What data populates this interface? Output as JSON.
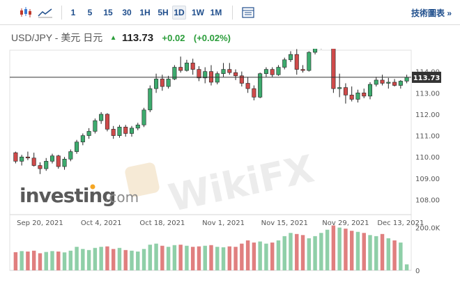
{
  "toolbar": {
    "icons": [
      "candlestick-icon",
      "line-chart-icon",
      "table-icon"
    ],
    "intervals": [
      {
        "label": "1",
        "active": false
      },
      {
        "label": "5",
        "active": false
      },
      {
        "label": "15",
        "active": false
      },
      {
        "label": "30",
        "active": false
      },
      {
        "label": "1H",
        "active": false
      },
      {
        "label": "5H",
        "active": false
      },
      {
        "label": "1D",
        "active": true
      },
      {
        "label": "1W",
        "active": false
      },
      {
        "label": "1M",
        "active": false
      }
    ],
    "tech_chart_label": "技術圖表 »"
  },
  "quote": {
    "name": "USD/JPY - 美元 日元",
    "price": "113.73",
    "change": "+0.02",
    "change_pct": "(+0.02%)",
    "direction_icon": "up-triangle-icon",
    "up_color": "#2a9d3a"
  },
  "watermarks": {
    "investing": "investing",
    "investing_suffix": ".com",
    "wikifx": "WikiFX"
  },
  "chart_data": {
    "type": "candlestick",
    "x_tick_labels": [
      "Sep 20, 2021",
      "Oct 4, 2021",
      "Oct 18, 2021",
      "Nov 1, 2021",
      "Nov 15, 2021",
      "Nov 29, 2021",
      "Dec 13, 2021"
    ],
    "x_tick_index": [
      4,
      14,
      24,
      34,
      44,
      54,
      63
    ],
    "y_tick_labels": [
      "108.00",
      "109.00",
      "110.00",
      "111.00",
      "112.00",
      "113.00",
      "114.00"
    ],
    "y_ticks": [
      108,
      109,
      110,
      111,
      112,
      113,
      114
    ],
    "ylim": [
      107.3,
      115.0
    ],
    "current_price": 113.73,
    "current_price_label": "113.73",
    "up_color": "#3dab6e",
    "down_color": "#cf4a4a",
    "volume_tick_labels": [
      "200.0K",
      "0"
    ],
    "volume_ticks": [
      200000,
      0
    ],
    "volume_max": 215000,
    "ohlc": [
      [
        110.2,
        110.25,
        109.7,
        109.8
      ],
      [
        109.8,
        110.1,
        109.6,
        110.0
      ],
      [
        110.0,
        110.25,
        109.85,
        109.95
      ],
      [
        109.95,
        110.2,
        109.55,
        109.6
      ],
      [
        109.6,
        109.75,
        109.2,
        109.45
      ],
      [
        109.45,
        109.95,
        109.35,
        109.8
      ],
      [
        109.8,
        110.15,
        109.7,
        110.05
      ],
      [
        110.05,
        110.1,
        109.45,
        109.55
      ],
      [
        109.55,
        110.0,
        109.4,
        109.9
      ],
      [
        109.9,
        110.35,
        109.8,
        110.25
      ],
      [
        110.25,
        110.8,
        110.15,
        110.7
      ],
      [
        110.7,
        111.1,
        110.55,
        111.0
      ],
      [
        111.0,
        111.35,
        110.85,
        111.2
      ],
      [
        111.2,
        111.8,
        111.1,
        111.7
      ],
      [
        111.7,
        112.1,
        111.55,
        112.0
      ],
      [
        112.0,
        112.05,
        111.2,
        111.3
      ],
      [
        111.3,
        111.45,
        110.85,
        111.0
      ],
      [
        111.0,
        111.5,
        110.9,
        111.4
      ],
      [
        111.4,
        111.5,
        110.95,
        111.1
      ],
      [
        111.1,
        111.45,
        110.95,
        111.35
      ],
      [
        111.35,
        111.6,
        111.25,
        111.5
      ],
      [
        111.5,
        112.3,
        111.4,
        112.2
      ],
      [
        112.2,
        113.35,
        112.1,
        113.2
      ],
      [
        113.2,
        113.9,
        113.0,
        113.65
      ],
      [
        113.65,
        113.85,
        113.1,
        113.3
      ],
      [
        113.3,
        113.8,
        113.2,
        113.65
      ],
      [
        113.65,
        114.3,
        113.6,
        114.2
      ],
      [
        114.2,
        114.7,
        113.95,
        114.05
      ],
      [
        114.05,
        114.55,
        114.0,
        114.4
      ],
      [
        114.4,
        114.6,
        113.85,
        114.1
      ],
      [
        114.1,
        114.25,
        113.55,
        113.7
      ],
      [
        113.7,
        114.2,
        113.45,
        114.0
      ],
      [
        114.0,
        114.3,
        113.35,
        113.5
      ],
      [
        113.5,
        114.0,
        113.4,
        113.9
      ],
      [
        113.9,
        114.4,
        113.75,
        114.1
      ],
      [
        114.1,
        114.4,
        113.85,
        113.95
      ],
      [
        113.95,
        114.1,
        113.6,
        113.8
      ],
      [
        113.8,
        114.0,
        113.3,
        113.45
      ],
      [
        113.45,
        113.75,
        113.0,
        113.2
      ],
      [
        113.2,
        113.35,
        112.65,
        112.8
      ],
      [
        112.8,
        113.95,
        112.75,
        113.9
      ],
      [
        113.9,
        114.2,
        113.75,
        114.1
      ],
      [
        114.1,
        114.2,
        113.75,
        113.85
      ],
      [
        113.85,
        114.3,
        113.8,
        114.2
      ],
      [
        114.2,
        114.65,
        114.1,
        114.55
      ],
      [
        114.55,
        114.95,
        114.45,
        114.8
      ],
      [
        114.8,
        115.05,
        113.85,
        114.1
      ],
      [
        114.1,
        114.3,
        113.95,
        114.05
      ],
      [
        114.05,
        114.95,
        114.0,
        114.9
      ],
      [
        114.9,
        115.3,
        114.8,
        115.15
      ],
      [
        115.15,
        115.55,
        115.05,
        115.4
      ],
      [
        115.4,
        115.55,
        115.35,
        115.45
      ],
      [
        115.45,
        115.55,
        113.0,
        113.2
      ],
      [
        113.2,
        113.9,
        112.8,
        113.25
      ],
      [
        113.25,
        113.45,
        112.5,
        112.9
      ],
      [
        112.9,
        113.3,
        112.6,
        112.7
      ],
      [
        112.7,
        113.15,
        112.55,
        113.0
      ],
      [
        113.0,
        113.2,
        112.75,
        112.85
      ],
      [
        112.85,
        113.5,
        112.7,
        113.4
      ],
      [
        113.4,
        113.75,
        113.3,
        113.6
      ],
      [
        113.6,
        113.85,
        113.35,
        113.45
      ],
      [
        113.45,
        113.7,
        113.2,
        113.5
      ],
      [
        113.5,
        113.65,
        113.3,
        113.35
      ],
      [
        113.35,
        113.6,
        113.2,
        113.55
      ],
      [
        113.55,
        113.85,
        113.45,
        113.73
      ]
    ],
    "volume": [
      85000,
      90000,
      88000,
      92000,
      80000,
      86000,
      90000,
      88000,
      84000,
      92000,
      110000,
      100000,
      95000,
      105000,
      110000,
      112000,
      100000,
      105000,
      95000,
      92000,
      88000,
      100000,
      120000,
      125000,
      115000,
      110000,
      118000,
      120000,
      115000,
      110000,
      112000,
      115000,
      118000,
      110000,
      108000,
      112000,
      110000,
      125000,
      140000,
      130000,
      135000,
      125000,
      130000,
      140000,
      160000,
      175000,
      170000,
      165000,
      150000,
      160000,
      175000,
      190000,
      210000,
      200000,
      195000,
      185000,
      180000,
      175000,
      165000,
      160000,
      170000,
      150000,
      140000,
      130000,
      28000
    ]
  }
}
